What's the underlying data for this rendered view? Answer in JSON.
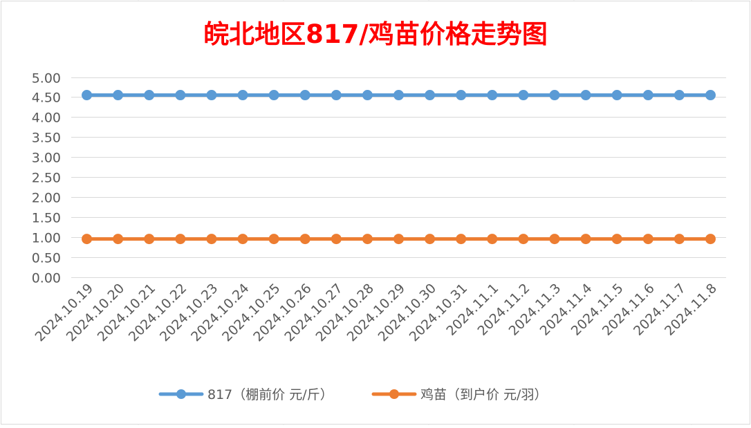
{
  "chart_data": {
    "type": "line",
    "title": "皖北地区817/鸡苗价格走势图",
    "xlabel": "",
    "ylabel": "",
    "ylim": [
      0,
      5
    ],
    "ytick_step": 0.5,
    "yticks": [
      "0.00",
      "0.50",
      "1.00",
      "1.50",
      "2.00",
      "2.50",
      "3.00",
      "3.50",
      "4.00",
      "4.50",
      "5.00"
    ],
    "grid": true,
    "legend_position": "bottom",
    "categories": [
      "2024.10.19",
      "2024.10.20",
      "2024.10.21",
      "2024.10.22",
      "2024.10.23",
      "2024.10.24",
      "2024.10.25",
      "2024.10.26",
      "2024.10.27",
      "2024.10.28",
      "2024.10.29",
      "2024.10.30",
      "2024.10.31",
      "2024.11.1",
      "2024.11.2",
      "2024.11.3",
      "2024.11.4",
      "2024.11.5",
      "2024.11.6",
      "2024.11.7",
      "2024.11.8"
    ],
    "series": [
      {
        "name": "817（棚前价 元/斤）",
        "color": "#5B9BD5",
        "values": [
          4.55,
          4.55,
          4.55,
          4.55,
          4.55,
          4.55,
          4.55,
          4.55,
          4.55,
          4.55,
          4.55,
          4.55,
          4.55,
          4.55,
          4.55,
          4.55,
          4.55,
          4.55,
          4.55,
          4.55,
          4.55
        ]
      },
      {
        "name": "鸡苗（到户价 元/羽）",
        "color": "#ED7D31",
        "values": [
          0.95,
          0.95,
          0.95,
          0.95,
          0.95,
          0.95,
          0.95,
          0.95,
          0.95,
          0.95,
          0.95,
          0.95,
          0.95,
          0.95,
          0.95,
          0.95,
          0.95,
          0.95,
          0.95,
          0.95,
          0.95
        ]
      }
    ],
    "colors": {
      "title": "#FF0000",
      "grid": "#D9D9D9",
      "axis_text": "#595959",
      "border": "#D9D9D9"
    }
  }
}
